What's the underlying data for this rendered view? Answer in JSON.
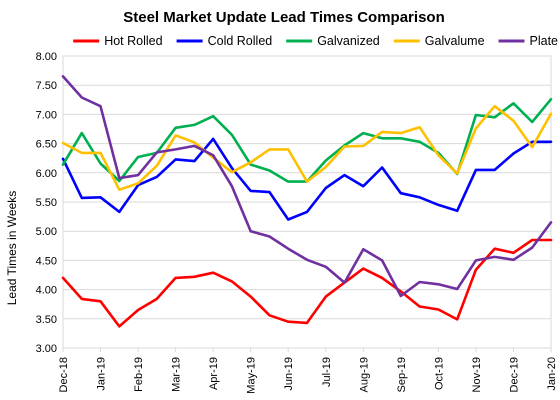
{
  "chart_data": {
    "type": "line",
    "title": "Steel Market Update Lead Times Comparison",
    "ylabel": "Lead Times in Weeks",
    "xlabel": "",
    "ylim": [
      3.0,
      8.0
    ],
    "yticks": [
      "3.00",
      "3.50",
      "4.00",
      "4.50",
      "5.00",
      "5.50",
      "6.00",
      "6.50",
      "7.00",
      "7.50",
      "8.00"
    ],
    "xtick_labels": [
      "Dec-18",
      "Jan-19",
      "Feb-19",
      "Mar-19",
      "Apr-19",
      "May-19",
      "Jun-19",
      "Jul-19",
      "Aug-19",
      "Sep-19",
      "Oct-19",
      "Nov-19",
      "Dec-19",
      "Jan-20"
    ],
    "grid": true,
    "legend_position": "top",
    "x_points_per_label": 2,
    "series": [
      {
        "name": "Hot Rolled",
        "color": "#ff0000",
        "values": [
          4.2,
          3.84,
          3.8,
          3.37,
          3.65,
          3.84,
          4.2,
          4.22,
          4.29,
          4.14,
          3.88,
          3.56,
          3.45,
          3.43,
          3.88,
          4.12,
          4.36,
          4.2,
          3.97,
          3.71,
          3.66,
          3.49,
          4.34,
          4.7,
          4.63,
          4.85,
          4.85
        ]
      },
      {
        "name": "Cold Rolled",
        "color": "#0000ff",
        "values": [
          6.24,
          5.57,
          5.58,
          5.33,
          5.79,
          5.93,
          6.23,
          6.2,
          6.58,
          6.08,
          5.69,
          5.67,
          5.2,
          5.33,
          5.74,
          5.96,
          5.77,
          6.09,
          5.65,
          5.58,
          5.45,
          5.35,
          6.05,
          6.05,
          6.33,
          6.53,
          6.53
        ]
      },
      {
        "name": "Galvanized",
        "color": "#00b050",
        "values": [
          6.14,
          6.68,
          6.16,
          5.86,
          6.27,
          6.34,
          6.77,
          6.82,
          6.97,
          6.65,
          6.14,
          6.04,
          5.85,
          5.85,
          6.21,
          6.47,
          6.68,
          6.59,
          6.59,
          6.53,
          6.34,
          5.98,
          6.99,
          6.95,
          7.19,
          6.87,
          7.26
        ]
      },
      {
        "name": "Galvalume",
        "color": "#ffc000",
        "values": [
          6.51,
          6.34,
          6.34,
          5.71,
          5.82,
          6.12,
          6.64,
          6.52,
          6.26,
          6.01,
          6.18,
          6.4,
          6.4,
          5.85,
          6.1,
          6.45,
          6.46,
          6.7,
          6.68,
          6.78,
          6.3,
          5.99,
          6.76,
          7.14,
          6.89,
          6.44,
          7.01
        ]
      },
      {
        "name": "Plate",
        "color": "#7030a0",
        "values": [
          7.65,
          7.29,
          7.14,
          5.91,
          5.96,
          6.35,
          6.4,
          6.46,
          6.3,
          5.77,
          5.0,
          4.91,
          4.7,
          4.51,
          4.39,
          4.12,
          4.69,
          4.5,
          3.89,
          4.13,
          4.09,
          4.01,
          4.5,
          4.56,
          4.51,
          4.72,
          5.15
        ]
      }
    ]
  }
}
